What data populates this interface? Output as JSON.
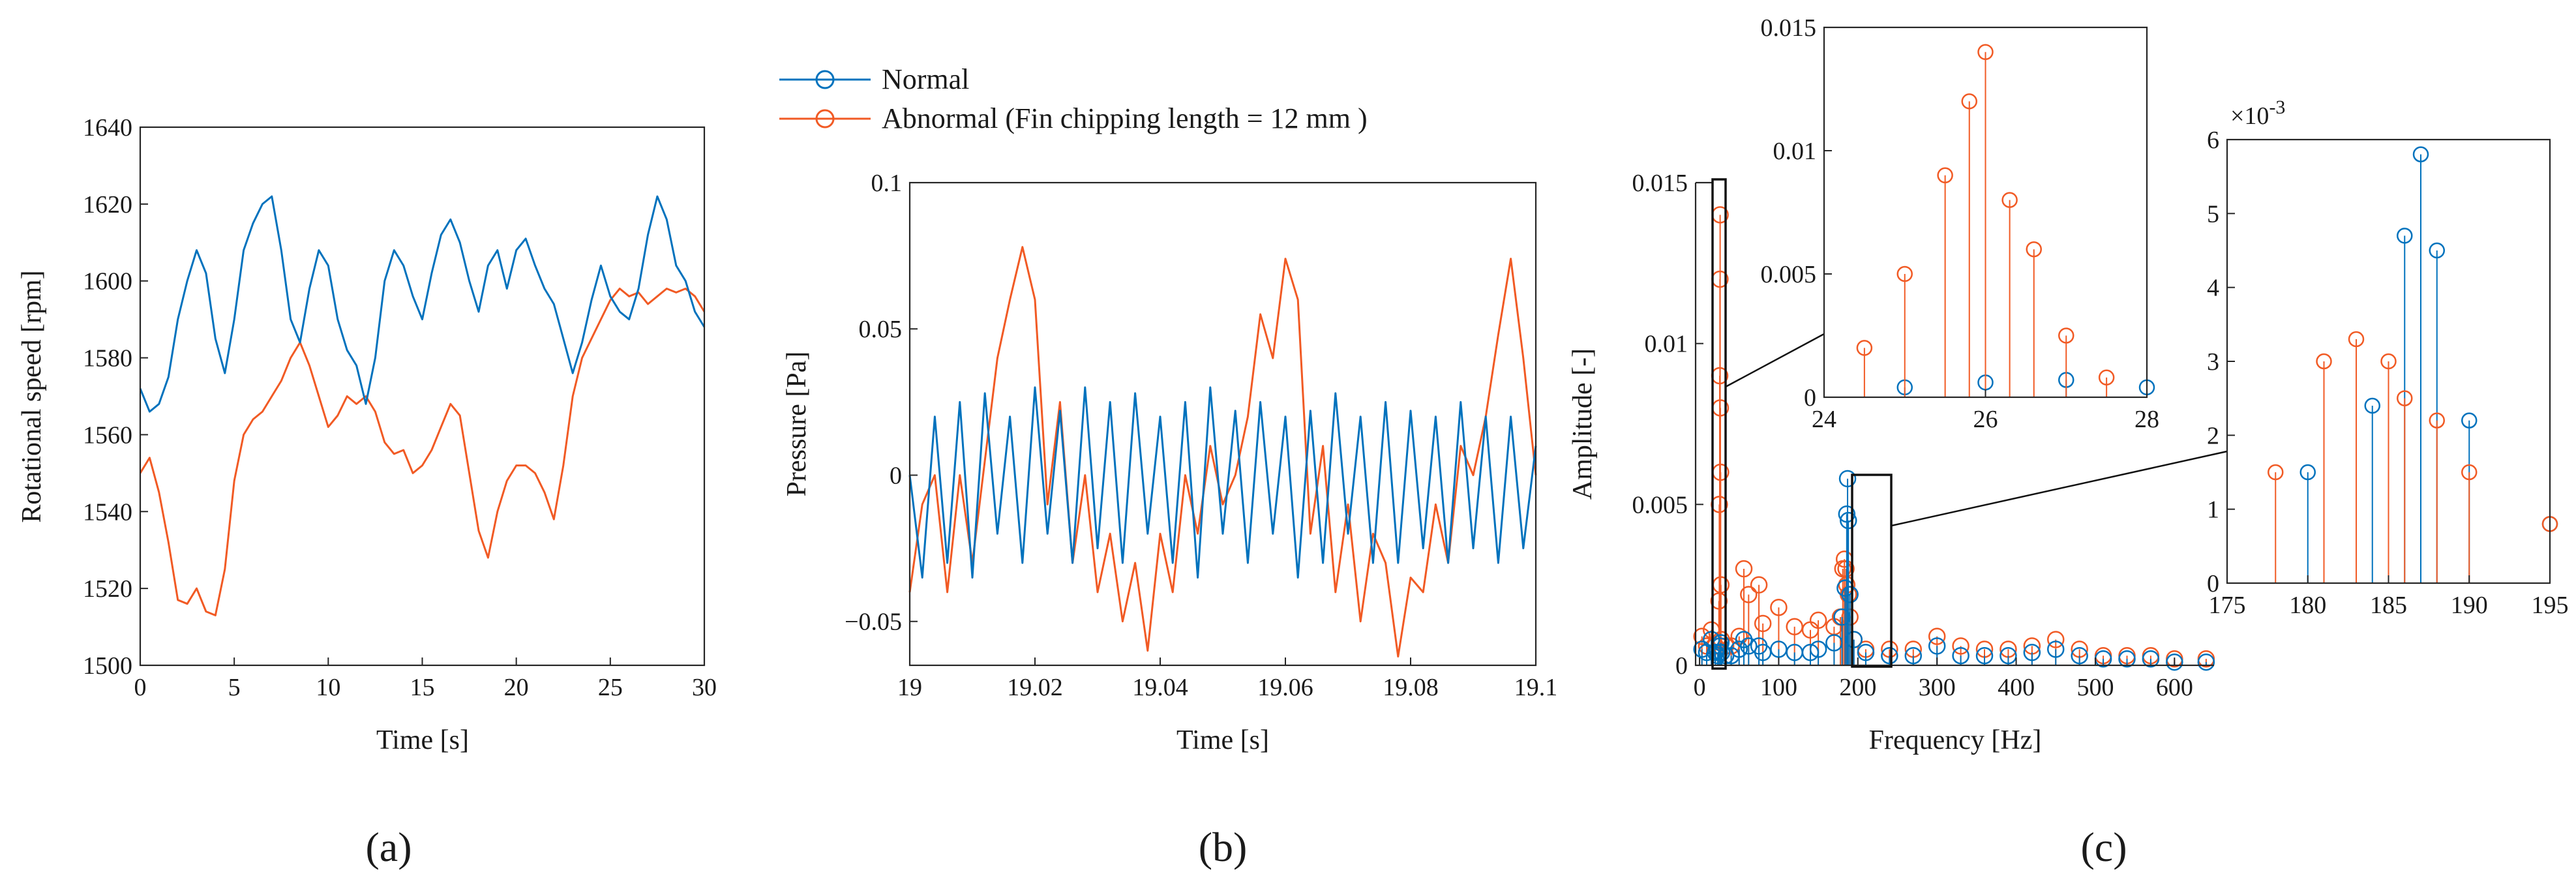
{
  "colors": {
    "normal": "#0072bd",
    "abnormal": "#f15a24",
    "axis": "#262626"
  },
  "legend": {
    "entries": [
      {
        "label": "Normal",
        "series": "normal"
      },
      {
        "label": "Abnormal (Fin chipping length = 12 mm )",
        "series": "abnormal"
      }
    ],
    "placement": "top-center",
    "marker": "circle"
  },
  "panel_labels": {
    "a": "(a)",
    "b": "(b)",
    "c": "(c)"
  },
  "chart_data": [
    {
      "id": "a",
      "type": "line",
      "xlabel": "Time [s]",
      "ylabel": "Rotational speed [rpm]",
      "xlim": [
        0,
        30
      ],
      "ylim": [
        1500,
        1640
      ],
      "xticks": [
        0,
        5,
        10,
        15,
        20,
        25,
        30
      ],
      "yticks": [
        1500,
        1520,
        1540,
        1560,
        1580,
        1600,
        1620,
        1640
      ],
      "grid": false,
      "series": [
        {
          "name": "Normal",
          "color_key": "normal",
          "x": [
            0,
            0.5,
            1,
            1.5,
            2,
            2.5,
            3,
            3.5,
            4,
            4.5,
            5,
            5.5,
            6,
            6.5,
            7,
            7.5,
            8,
            8.5,
            9,
            9.5,
            10,
            10.5,
            11,
            11.5,
            12,
            12.5,
            13,
            13.5,
            14,
            14.5,
            15,
            15.5,
            16,
            16.5,
            17,
            17.5,
            18,
            18.5,
            19,
            19.5,
            20,
            20.5,
            21,
            21.5,
            22,
            22.5,
            23,
            23.5,
            24,
            24.5,
            25,
            25.5,
            26,
            26.5,
            27,
            27.5,
            28,
            28.5,
            29,
            29.5,
            30
          ],
          "y": [
            1572,
            1566,
            1568,
            1575,
            1590,
            1600,
            1608,
            1602,
            1585,
            1576,
            1590,
            1608,
            1615,
            1620,
            1622,
            1608,
            1590,
            1584,
            1598,
            1608,
            1604,
            1590,
            1582,
            1578,
            1568,
            1580,
            1600,
            1608,
            1604,
            1596,
            1590,
            1602,
            1612,
            1616,
            1610,
            1600,
            1592,
            1604,
            1608,
            1598,
            1608,
            1611,
            1604,
            1598,
            1594,
            1585,
            1576,
            1584,
            1595,
            1604,
            1596,
            1592,
            1590,
            1598,
            1612,
            1622,
            1616,
            1604,
            1600,
            1592,
            1588
          ]
        },
        {
          "name": "Abnormal",
          "color_key": "abnormal",
          "x": [
            0,
            0.5,
            1,
            1.5,
            2,
            2.5,
            3,
            3.5,
            4,
            4.5,
            5,
            5.5,
            6,
            6.5,
            7,
            7.5,
            8,
            8.5,
            9,
            9.5,
            10,
            10.5,
            11,
            11.5,
            12,
            12.5,
            13,
            13.5,
            14,
            14.5,
            15,
            15.5,
            16,
            16.5,
            17,
            17.5,
            18,
            18.5,
            19,
            19.5,
            20,
            20.5,
            21,
            21.5,
            22,
            22.5,
            23,
            23.5,
            24,
            24.5,
            25,
            25.5,
            26,
            26.5,
            27,
            27.5,
            28,
            28.5,
            29,
            29.5,
            30
          ],
          "y": [
            1550,
            1554,
            1545,
            1532,
            1517,
            1516,
            1520,
            1514,
            1513,
            1525,
            1548,
            1560,
            1564,
            1566,
            1570,
            1574,
            1580,
            1584,
            1578,
            1570,
            1562,
            1565,
            1570,
            1568,
            1570,
            1566,
            1558,
            1555,
            1556,
            1550,
            1552,
            1556,
            1562,
            1568,
            1565,
            1550,
            1535,
            1528,
            1540,
            1548,
            1552,
            1552,
            1550,
            1545,
            1538,
            1552,
            1570,
            1580,
            1585,
            1590,
            1595,
            1598,
            1596,
            1597,
            1594,
            1596,
            1598,
            1597,
            1598,
            1596,
            1592
          ]
        }
      ]
    },
    {
      "id": "b",
      "type": "line",
      "xlabel": "Time [s]",
      "ylabel": "Pressure [Pa]",
      "xlim": [
        19,
        19.1
      ],
      "ylim": [
        -0.065,
        0.1
      ],
      "xticks": [
        19,
        19.02,
        19.04,
        19.06,
        19.08,
        19.1
      ],
      "yticks": [
        -0.05,
        0,
        0.05,
        0.1
      ],
      "grid": false,
      "series": [
        {
          "name": "Normal",
          "color_key": "normal",
          "x": [
            19,
            19.002,
            19.004,
            19.006,
            19.008,
            19.01,
            19.012,
            19.014,
            19.016,
            19.018,
            19.02,
            19.022,
            19.024,
            19.026,
            19.028,
            19.03,
            19.032,
            19.034,
            19.036,
            19.038,
            19.04,
            19.042,
            19.044,
            19.046,
            19.048,
            19.05,
            19.052,
            19.054,
            19.056,
            19.058,
            19.06,
            19.062,
            19.064,
            19.066,
            19.068,
            19.07,
            19.072,
            19.074,
            19.076,
            19.078,
            19.08,
            19.082,
            19.084,
            19.086,
            19.088,
            19.09,
            19.092,
            19.094,
            19.096,
            19.098,
            19.1
          ],
          "y": [
            0.0,
            -0.035,
            0.02,
            -0.03,
            0.025,
            -0.035,
            0.028,
            -0.02,
            0.02,
            -0.03,
            0.03,
            -0.02,
            0.022,
            -0.03,
            0.03,
            -0.025,
            0.025,
            -0.03,
            0.028,
            -0.02,
            0.02,
            -0.03,
            0.025,
            -0.035,
            0.03,
            -0.02,
            0.022,
            -0.03,
            0.025,
            -0.02,
            0.02,
            -0.035,
            0.022,
            -0.03,
            0.028,
            -0.02,
            0.02,
            -0.03,
            0.025,
            -0.03,
            0.022,
            -0.025,
            0.02,
            -0.03,
            0.025,
            -0.025,
            0.02,
            -0.03,
            0.02,
            -0.025,
            0.01
          ]
        },
        {
          "name": "Abnormal",
          "color_key": "abnormal",
          "x": [
            19,
            19.002,
            19.004,
            19.006,
            19.008,
            19.01,
            19.012,
            19.014,
            19.016,
            19.018,
            19.02,
            19.022,
            19.024,
            19.026,
            19.028,
            19.03,
            19.032,
            19.034,
            19.036,
            19.038,
            19.04,
            19.042,
            19.044,
            19.046,
            19.048,
            19.05,
            19.052,
            19.054,
            19.056,
            19.058,
            19.06,
            19.062,
            19.064,
            19.066,
            19.068,
            19.07,
            19.072,
            19.074,
            19.076,
            19.078,
            19.08,
            19.082,
            19.084,
            19.086,
            19.088,
            19.09,
            19.092,
            19.094,
            19.096,
            19.098,
            19.1
          ],
          "y": [
            -0.04,
            -0.01,
            0.0,
            -0.04,
            0.0,
            -0.03,
            0.005,
            0.04,
            0.06,
            0.078,
            0.06,
            -0.01,
            0.025,
            -0.03,
            0.0,
            -0.04,
            -0.02,
            -0.05,
            -0.03,
            -0.06,
            -0.02,
            -0.04,
            0.0,
            -0.02,
            0.01,
            -0.01,
            0.0,
            0.02,
            0.055,
            0.04,
            0.074,
            0.06,
            -0.02,
            0.01,
            -0.04,
            -0.01,
            -0.05,
            -0.02,
            -0.03,
            -0.062,
            -0.035,
            -0.04,
            -0.01,
            -0.03,
            0.01,
            0.0,
            0.02,
            0.048,
            0.074,
            0.04,
            0.0
          ]
        }
      ]
    },
    {
      "id": "c",
      "type": "scatter",
      "xlabel": "Frequency [Hz]",
      "ylabel": "Amplitude [-]",
      "xlim": [
        -5,
        650
      ],
      "ylim": [
        0,
        0.015
      ],
      "xticks": [
        0,
        100,
        200,
        300,
        400,
        500,
        600
      ],
      "yticks": [
        0,
        0.005,
        0.01,
        0.015
      ],
      "grid": false,
      "annotations": [
        "Zoom boxes around 24–28 Hz and 175–195 Hz linked to insets"
      ],
      "insets": [
        {
          "id": "c-inset-1",
          "xlim": [
            24,
            28
          ],
          "ylim": [
            0,
            0.015
          ],
          "xticks": [
            24,
            26,
            28
          ],
          "yticks": [
            0,
            0.005,
            0.01,
            0.015
          ]
        },
        {
          "id": "c-inset-2",
          "xlim": [
            175,
            195
          ],
          "ylim": [
            0,
            6
          ],
          "xticks": [
            175,
            180,
            185,
            190,
            195
          ],
          "yticks": [
            0,
            1,
            2,
            3,
            4,
            5,
            6
          ],
          "y_multiplier": "×10",
          "y_multiplier_exp": "-3"
        }
      ],
      "series": [
        {
          "name": "Normal",
          "color_key": "normal",
          "x": [
            3,
            9,
            15,
            20,
            23,
            25,
            26,
            27,
            28,
            33,
            40,
            50,
            56,
            62,
            75,
            80,
            100,
            120,
            140,
            150,
            170,
            180,
            184,
            186,
            187,
            188,
            190,
            195,
            210,
            240,
            270,
            300,
            330,
            360,
            390,
            420,
            450,
            480,
            510,
            540,
            570,
            600,
            640
          ],
          "y": [
            0.0005,
            0.0004,
            0.0008,
            0.0004,
            0.0003,
            0.0004,
            0.0006,
            0.0007,
            0.0004,
            0.0003,
            0.0003,
            0.0005,
            0.0008,
            0.0006,
            0.0006,
            0.0004,
            0.0005,
            0.0004,
            0.0004,
            0.0005,
            0.0007,
            0.0015,
            0.0024,
            0.0047,
            0.0058,
            0.0045,
            0.0022,
            0.0008,
            0.0004,
            0.0003,
            0.0003,
            0.0006,
            0.0003,
            0.0003,
            0.0003,
            0.0004,
            0.0005,
            0.0003,
            0.0002,
            0.0002,
            0.0002,
            0.0001,
            0.0001
          ]
        },
        {
          "name": "Abnormal",
          "color_key": "abnormal",
          "x": [
            3,
            9,
            15,
            20,
            24.5,
            25,
            25.5,
            25.8,
            26,
            26.3,
            26.6,
            27,
            27.5,
            33,
            40,
            50,
            56,
            62,
            75,
            80,
            100,
            120,
            140,
            150,
            170,
            178,
            181,
            183,
            185,
            186,
            188,
            190,
            195,
            210,
            240,
            270,
            300,
            330,
            360,
            390,
            420,
            450,
            480,
            510,
            540,
            570,
            600,
            640
          ],
          "y": [
            0.0009,
            0.0006,
            0.0011,
            0.0006,
            0.002,
            0.005,
            0.009,
            0.012,
            0.014,
            0.008,
            0.006,
            0.0025,
            0.0008,
            0.0006,
            0.0006,
            0.0009,
            0.003,
            0.0022,
            0.0025,
            0.0013,
            0.0018,
            0.0012,
            0.0011,
            0.0014,
            0.0012,
            0.0015,
            0.003,
            0.0033,
            0.003,
            0.0025,
            0.0022,
            0.0015,
            0.0008,
            0.0005,
            0.0005,
            0.0005,
            0.0009,
            0.0006,
            0.0005,
            0.0005,
            0.0006,
            0.0008,
            0.0005,
            0.0003,
            0.0003,
            0.0003,
            0.0002,
            0.0002
          ]
        }
      ]
    }
  ]
}
